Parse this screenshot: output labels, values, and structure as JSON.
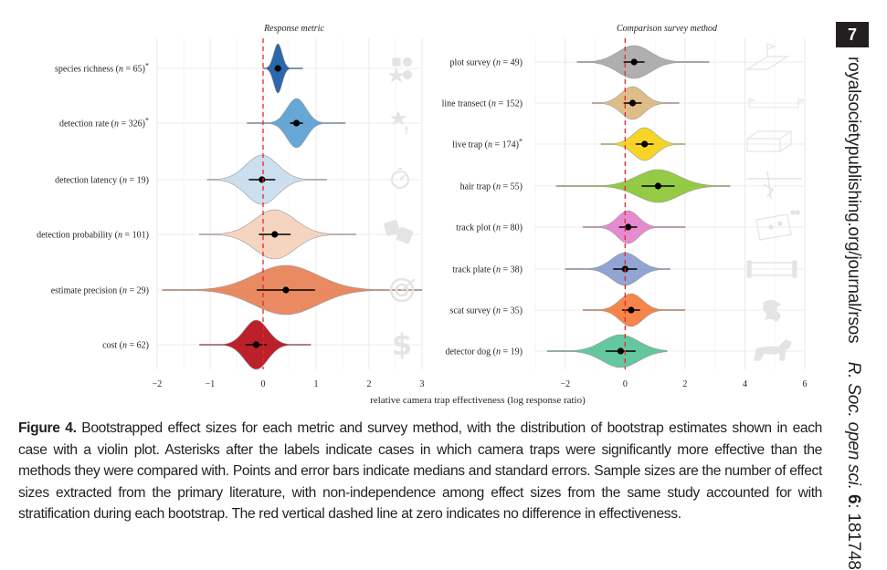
{
  "page_number": "7",
  "journal_url": "royalsocietypublishing.org/journal/rsos",
  "journal_citation": {
    "journal": "R. Soc. open sci.",
    "volume": "6",
    "article": "181748"
  },
  "caption": {
    "label": "Figure 4.",
    "text": "Bootstrapped effect sizes for each metric and survey method, with the distribution of bootstrap estimates shown in each case with a violin plot. Asterisks after the labels indicate cases in which camera traps were significantly more effective than the methods they were compared with. Points and error bars indicate medians and standard errors. Sample sizes are the number of effect sizes extracted from the primary literature, with non-independence among effect sizes from the same study accounted for with stratification during each bootstrap. The red vertical dashed line at zero indicates no difference in effectiveness."
  },
  "chart_data": [
    {
      "type": "violin",
      "title": "Response metric",
      "xlabel": "relative camera trap effectiveness (log response ratio)",
      "xlim": [
        -2,
        3
      ],
      "xticks": [
        -2,
        -1,
        0,
        1,
        2,
        3
      ],
      "reference_line": 0,
      "categories": [
        {
          "name": "species richness",
          "n": 65,
          "significant": true,
          "median": 0.28,
          "se": 0.04,
          "min": 0.0,
          "max": 0.75,
          "spread": 0.08,
          "color": "#1f5fa8",
          "icon": "shapes-icon"
        },
        {
          "name": "detection rate",
          "n": 326,
          "significant": true,
          "median": 0.63,
          "se": 0.12,
          "min": -0.3,
          "max": 1.55,
          "spread": 0.18,
          "color": "#5fa2d3",
          "icon": "star-icon"
        },
        {
          "name": "detection latency",
          "n": 19,
          "significant": false,
          "median": -0.02,
          "se": 0.25,
          "min": -1.05,
          "max": 1.2,
          "spread": 0.3,
          "color": "#c9ddee",
          "icon": "stopwatch-icon"
        },
        {
          "name": "detection probability",
          "n": 101,
          "significant": false,
          "median": 0.22,
          "se": 0.3,
          "min": -1.2,
          "max": 1.75,
          "spread": 0.38,
          "color": "#f6d3bd",
          "icon": "dice-icon"
        },
        {
          "name": "estimate precision",
          "n": 29,
          "significant": false,
          "median": 0.43,
          "se": 0.55,
          "min": -1.9,
          "max": 3.0,
          "spread": 0.6,
          "color": "#e9845a",
          "icon": "target-icon"
        },
        {
          "name": "cost",
          "n": 62,
          "significant": false,
          "median": -0.13,
          "se": 0.2,
          "min": -1.2,
          "max": 0.9,
          "spread": 0.22,
          "color": "#b8141f",
          "icon": "dollar-icon"
        }
      ]
    },
    {
      "type": "violin",
      "title": "Comparison survey method",
      "xlabel": "relative camera trap effectiveness (log response ratio)",
      "xlim": [
        -3,
        6
      ],
      "xticks": [
        -2,
        0,
        2,
        4,
        6
      ],
      "reference_line": 0,
      "categories": [
        {
          "name": "plot survey",
          "n": 49,
          "significant": false,
          "median": 0.3,
          "se": 0.35,
          "min": -1.6,
          "max": 2.8,
          "spread": 0.55,
          "color": "#ababab",
          "icon": "plot-icon"
        },
        {
          "name": "line transect",
          "n": 152,
          "significant": false,
          "median": 0.25,
          "se": 0.3,
          "min": -1.1,
          "max": 1.8,
          "spread": 0.38,
          "color": "#ddb983",
          "icon": "flags-icon"
        },
        {
          "name": "live trap",
          "n": 174,
          "significant": true,
          "median": 0.65,
          "se": 0.3,
          "min": -0.8,
          "max": 2.0,
          "spread": 0.38,
          "color": "#f6d31a",
          "icon": "cage-icon"
        },
        {
          "name": "hair trap",
          "n": 55,
          "significant": false,
          "median": 1.1,
          "se": 0.55,
          "min": -2.3,
          "max": 3.5,
          "spread": 0.7,
          "color": "#8ec73a",
          "icon": "barbed-wire-icon"
        },
        {
          "name": "track plot",
          "n": 80,
          "significant": false,
          "median": 0.1,
          "se": 0.3,
          "min": -1.4,
          "max": 2.0,
          "spread": 0.35,
          "color": "#e685cf",
          "icon": "footprints-icon"
        },
        {
          "name": "track plate",
          "n": 38,
          "significant": false,
          "median": 0.0,
          "se": 0.4,
          "min": -2.0,
          "max": 1.5,
          "spread": 0.45,
          "color": "#8b9fd1",
          "icon": "plate-icon"
        },
        {
          "name": "scat survey",
          "n": 35,
          "significant": false,
          "median": 0.2,
          "se": 0.3,
          "min": -1.4,
          "max": 2.0,
          "spread": 0.38,
          "color": "#f47e3f",
          "icon": "scat-icon"
        },
        {
          "name": "detector dog",
          "n": 19,
          "significant": false,
          "median": -0.15,
          "se": 0.5,
          "min": -2.6,
          "max": 1.4,
          "spread": 0.6,
          "color": "#5cc49a",
          "icon": "dog-icon"
        }
      ]
    }
  ]
}
